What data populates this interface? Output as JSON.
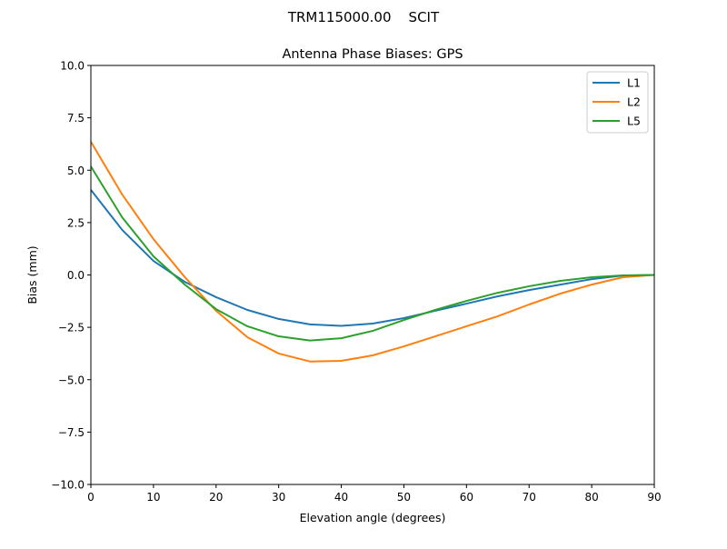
{
  "chart_data": {
    "type": "line",
    "suptitle": "TRM115000.00    SCIT",
    "title": "Antenna Phase Biases: GPS",
    "xlabel": "Elevation angle (degrees)",
    "ylabel": "Bias (mm)",
    "xlim": [
      0,
      90
    ],
    "ylim": [
      -10,
      10
    ],
    "xticks": [
      0,
      10,
      20,
      30,
      40,
      50,
      60,
      70,
      80,
      90
    ],
    "yticks": [
      10.0,
      7.5,
      5.0,
      2.5,
      0.0,
      -2.5,
      -5.0,
      -7.5,
      -10.0
    ],
    "ytick_labels": [
      "10.0",
      "7.5",
      "5.0",
      "2.5",
      "0.0",
      "−2.5",
      "−5.0",
      "−7.5",
      "−10.0"
    ],
    "grid": false,
    "legend_placement": "top-right",
    "x": [
      0,
      5,
      10,
      15,
      20,
      25,
      30,
      35,
      40,
      45,
      50,
      55,
      60,
      65,
      70,
      75,
      80,
      85,
      90
    ],
    "series": [
      {
        "name": "L1",
        "color": "#1f77b4",
        "values": [
          4.06,
          2.15,
          0.67,
          -0.33,
          -1.06,
          -1.67,
          -2.1,
          -2.36,
          -2.43,
          -2.32,
          -2.06,
          -1.71,
          -1.37,
          -1.02,
          -0.72,
          -0.46,
          -0.2,
          -0.03,
          0.0
        ]
      },
      {
        "name": "L2",
        "color": "#ff7f0e",
        "values": [
          6.36,
          3.84,
          1.71,
          -0.1,
          -1.71,
          -2.97,
          -3.75,
          -4.13,
          -4.1,
          -3.84,
          -3.41,
          -2.93,
          -2.45,
          -1.97,
          -1.41,
          -0.89,
          -0.46,
          -0.11,
          0.0
        ]
      },
      {
        "name": "L5",
        "color": "#2ca02c",
        "values": [
          5.18,
          2.75,
          0.89,
          -0.46,
          -1.63,
          -2.45,
          -2.93,
          -3.13,
          -3.02,
          -2.67,
          -2.15,
          -1.67,
          -1.24,
          -0.85,
          -0.54,
          -0.28,
          -0.11,
          -0.02,
          0.0
        ]
      }
    ]
  }
}
